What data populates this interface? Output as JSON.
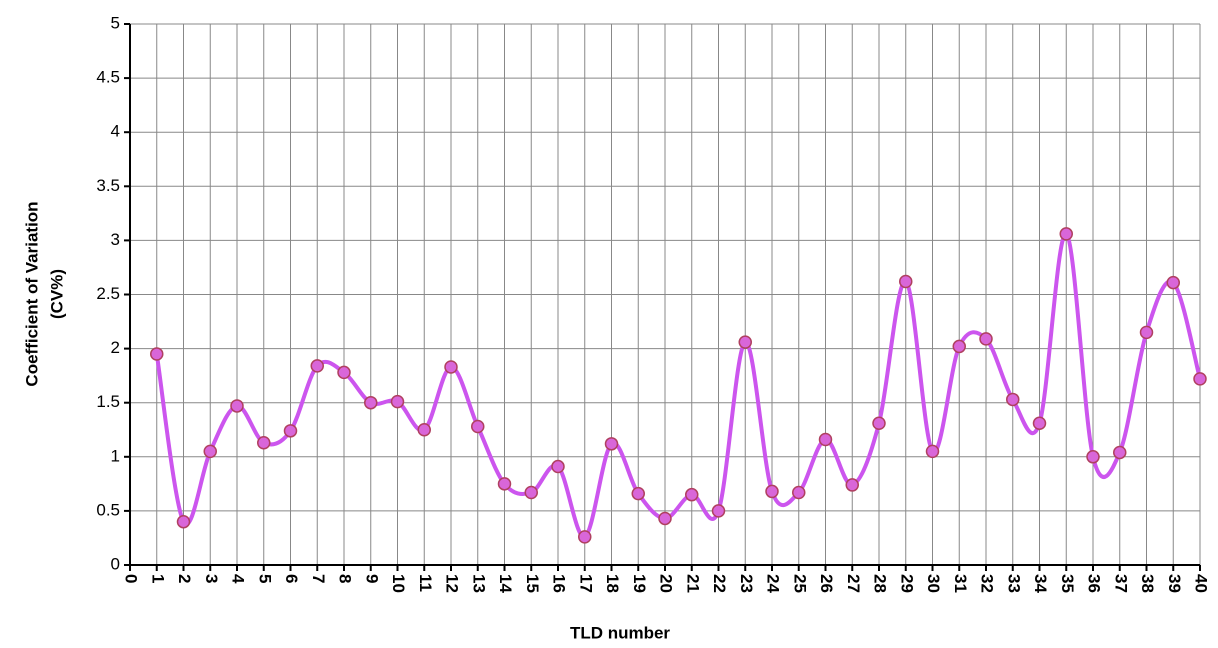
{
  "chart_data": {
    "type": "line",
    "ylabel": [
      "Coefficient of Variation",
      "(CV%)"
    ],
    "xlabel": "TLD number",
    "x": [
      1,
      2,
      3,
      4,
      5,
      6,
      7,
      8,
      9,
      10,
      11,
      12,
      13,
      14,
      15,
      16,
      17,
      18,
      19,
      20,
      21,
      22,
      23,
      24,
      25,
      26,
      27,
      28,
      29,
      30,
      31,
      32,
      33,
      34,
      35,
      36,
      37,
      38,
      39,
      40
    ],
    "values": [
      1.95,
      0.4,
      1.05,
      1.47,
      1.13,
      1.24,
      1.84,
      1.78,
      1.5,
      1.51,
      1.25,
      1.83,
      1.28,
      0.75,
      0.67,
      0.91,
      0.26,
      1.12,
      0.66,
      0.43,
      0.65,
      0.5,
      2.06,
      0.68,
      0.67,
      1.16,
      0.74,
      1.31,
      2.62,
      1.05,
      2.02,
      2.09,
      1.53,
      1.31,
      3.06,
      1.0,
      1.04,
      2.15,
      2.61,
      1.72
    ],
    "color": "#cc55ee",
    "marker_color": "#d966d9",
    "marker_edge": "#b04060",
    "smooth": true,
    "xlim": [
      0,
      40
    ],
    "xticks": [
      0,
      1,
      2,
      3,
      4,
      5,
      6,
      7,
      8,
      9,
      10,
      11,
      12,
      13,
      14,
      15,
      16,
      17,
      18,
      19,
      20,
      21,
      22,
      23,
      24,
      25,
      26,
      27,
      28,
      29,
      30,
      31,
      32,
      33,
      34,
      35,
      36,
      37,
      38,
      39,
      40
    ],
    "ylim": [
      0,
      5
    ],
    "yticks": [
      0,
      0.5,
      1,
      1.5,
      2,
      2.5,
      3,
      3.5,
      4,
      4.5,
      5
    ],
    "grid": true
  }
}
